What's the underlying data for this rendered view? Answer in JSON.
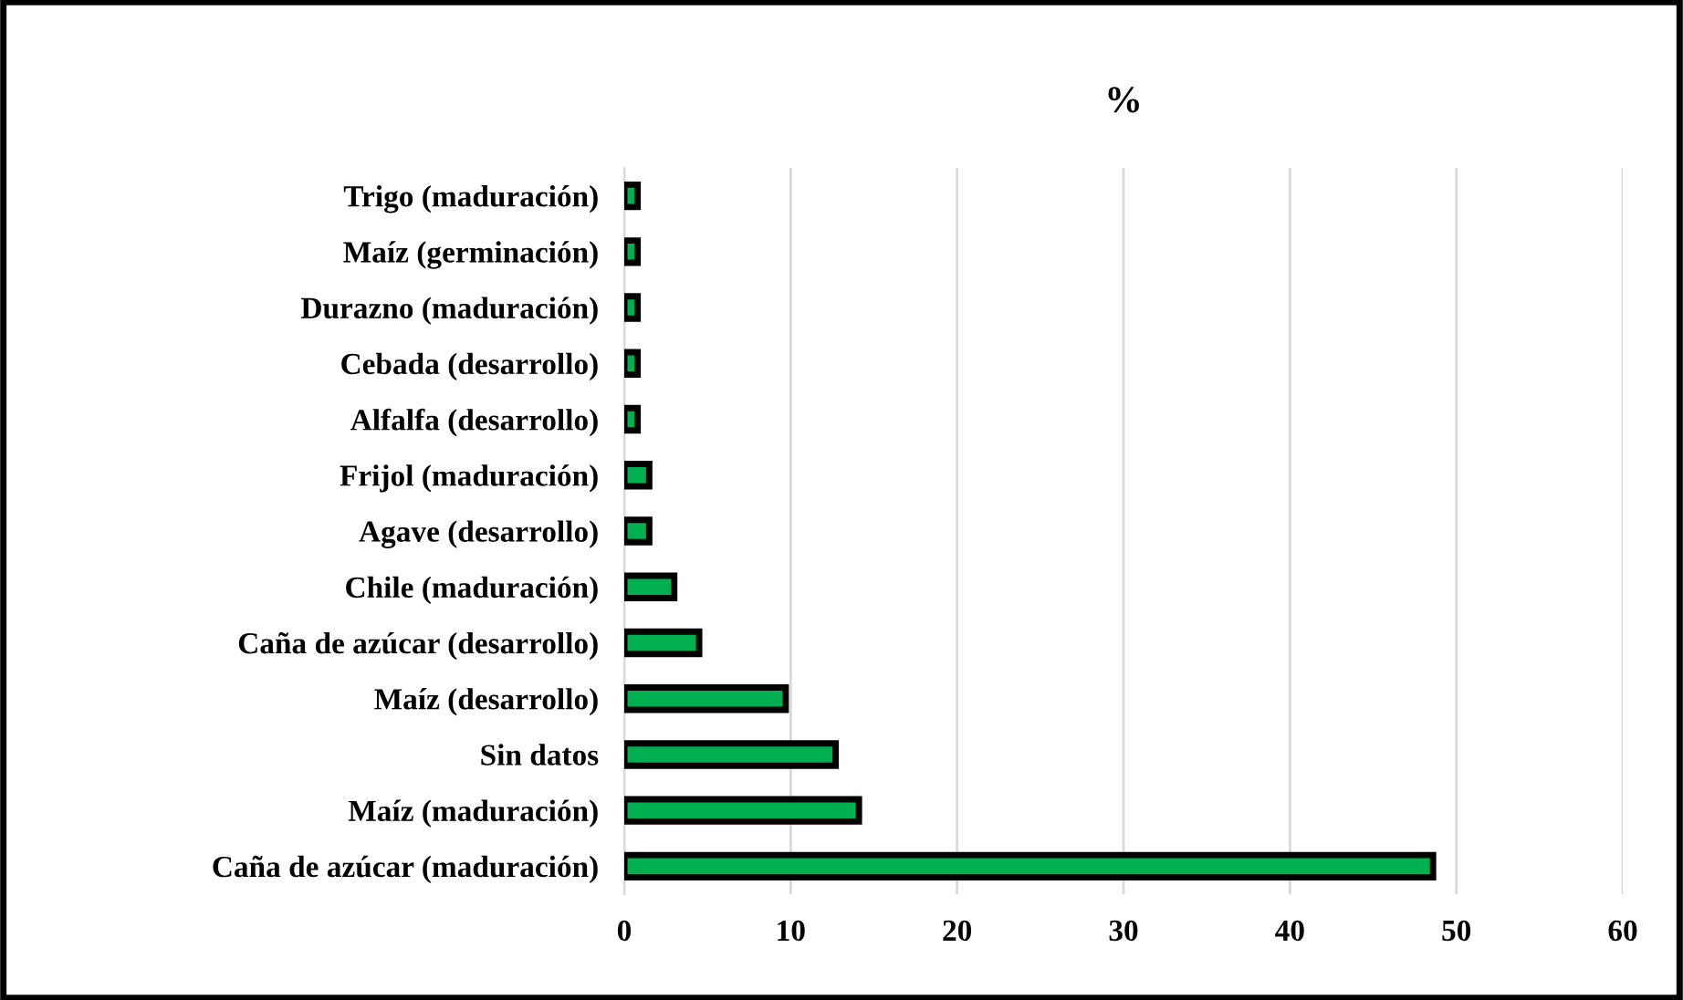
{
  "chart_data": {
    "type": "bar",
    "orientation": "horizontal",
    "title": "%",
    "categories": [
      "Trigo (maduración)",
      "Maíz (germinación)",
      "Durazno (maduración)",
      "Cebada (desarrollo)",
      "Alfalfa (desarrollo)",
      "Frijol (maduración)",
      "Agave (desarrollo)",
      "Chile (maduración)",
      "Caña de azúcar (desarrollo)",
      "Maíz (desarrollo)",
      "Sin datos",
      "Maíz (maduración)",
      "Caña de azúcar (maduración)"
    ],
    "values": [
      0.8,
      0.8,
      0.8,
      0.8,
      0.8,
      1.5,
      1.5,
      3.0,
      4.5,
      9.7,
      12.7,
      14.1,
      48.6
    ],
    "color": "#00b050",
    "xlim": [
      0,
      60
    ],
    "xticks": [
      0,
      10,
      20,
      30,
      40,
      50,
      60
    ],
    "grid": "x"
  }
}
